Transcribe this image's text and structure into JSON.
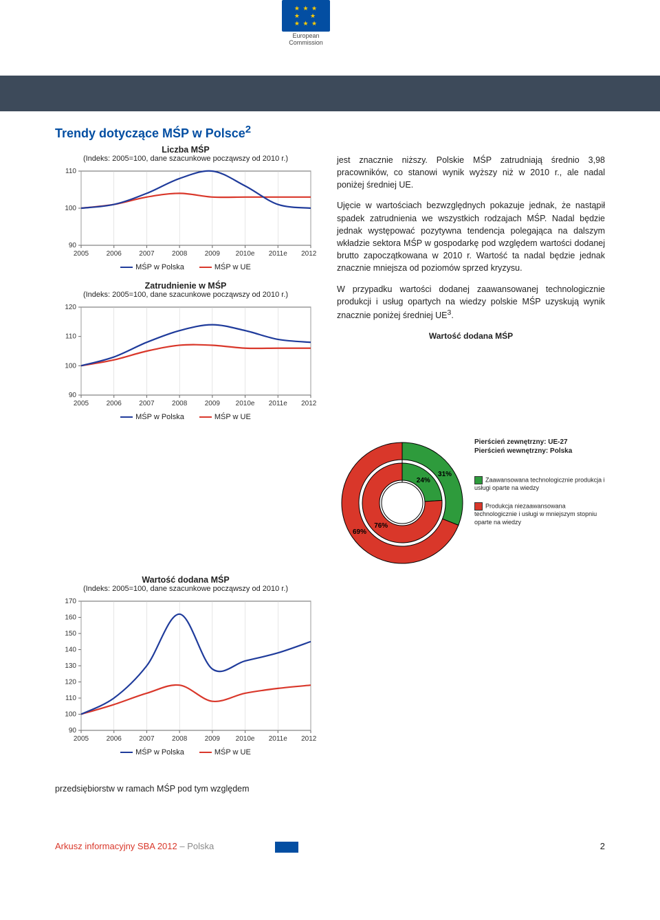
{
  "header": {
    "org_line1": "European",
    "org_line2": "Commission"
  },
  "title": "Trendy dotyczące MŚP w Polsce",
  "title_sup": "2",
  "chart_common": {
    "subtitle": "(Indeks: 2005=100, dane szacunkowe począwszy od 2010 r.)",
    "x_categories": [
      "2005",
      "2006",
      "2007",
      "2008",
      "2009",
      "2010e",
      "2011e",
      "2012e"
    ],
    "color_polska": "#1f3b9b",
    "color_ue": "#d9372a",
    "legend_polska": "MŚP w Polska",
    "legend_ue": "MŚP w UE",
    "axis_color": "#666",
    "tick_font": 10
  },
  "chart1": {
    "title": "Liczba MŚP",
    "ylim": [
      90,
      110
    ],
    "yticks": [
      90,
      100,
      110
    ],
    "polska": [
      100,
      101,
      104,
      108,
      110,
      106,
      101,
      100
    ],
    "ue": [
      100,
      101,
      103,
      104,
      103,
      103,
      103,
      103
    ]
  },
  "chart2": {
    "title": "Zatrudnienie w MŚP",
    "ylim": [
      90,
      120
    ],
    "yticks": [
      90,
      100,
      110,
      120
    ],
    "polska": [
      100,
      103,
      108,
      112,
      114,
      112,
      109,
      108
    ],
    "ue": [
      100,
      102,
      105,
      107,
      107,
      106,
      106,
      106
    ]
  },
  "chart3": {
    "title": "Wartość dodana MŚP",
    "ylim": [
      90,
      170
    ],
    "yticks": [
      90,
      100,
      110,
      120,
      130,
      140,
      150,
      160,
      170
    ],
    "polska": [
      100,
      110,
      130,
      162,
      128,
      133,
      138,
      145
    ],
    "ue": [
      100,
      106,
      113,
      118,
      108,
      113,
      116,
      118
    ]
  },
  "body_text": {
    "p1": "jest znacznie niższy. Polskie MŚP zatrudniają średnio 3,98 pracowników, co stanowi wynik wyższy niż w 2010 r., ale nadal poniżej średniej UE.",
    "p2": "Ujęcie w wartościach bezwzględnych pokazuje jednak, że nastąpił spadek zatrudnienia we wszystkich rodzajach MŚP. Nadal będzie jednak występować pozytywna tendencja polegająca na dalszym wkładzie sektora MŚP w gospodarkę pod względem wartości dodanej brutto zapoczątkowana w 2010 r. Wartość ta nadal będzie jednak znacznie mniejsza od poziomów sprzed kryzysu.",
    "p3a": "W przypadku wartości dodanej zaawansowanej technologicznie produkcji i usług opartych na wiedzy polskie MŚP uzyskują wynik znacznie poniżej średniej UE",
    "p3sup": "3",
    "p3b": "."
  },
  "donut": {
    "title": "Wartość dodana MŚP",
    "ring_outer_label": "Pierścień zewnętrzny: UE-27",
    "ring_inner_label": "Pierścień wewnętrzny: Polska",
    "outer": [
      {
        "label": "31%",
        "value": 31,
        "color": "#2e9b3c"
      },
      {
        "label": "69%",
        "value": 69,
        "color": "#d9372a"
      }
    ],
    "inner": [
      {
        "label": "24%",
        "value": 24,
        "color": "#2e9b3c"
      },
      {
        "label": "76%",
        "value": 76,
        "color": "#d9372a"
      }
    ],
    "legend_green": "Zaawansowana technologicznie produkcja i usługi oparte na wiedzy",
    "legend_red": "Produkcja niezaawansowana technologicznie i usługi w mniejszym stopniu oparte na wiedzy",
    "stroke": "#000"
  },
  "trailing_text": "przedsiębiorstw w ramach MŚP pod tym względem",
  "footer": {
    "red": "Arkusz informacyjny SBA 2012",
    "grey": " – Polska",
    "page": "2"
  }
}
